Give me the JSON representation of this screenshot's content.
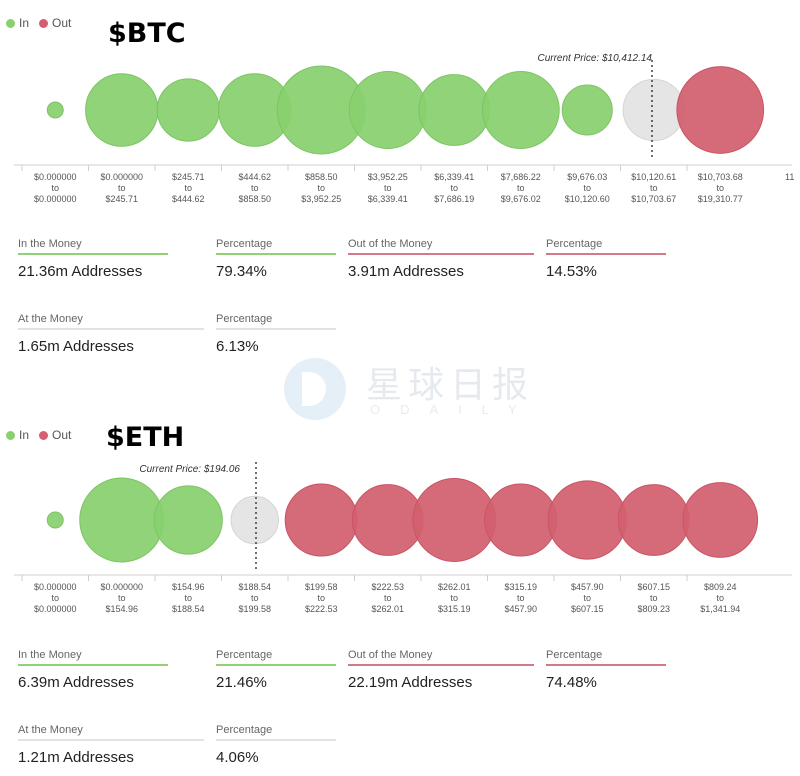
{
  "legend": {
    "in": "In",
    "out": "Out"
  },
  "colors": {
    "in": "#89d06e",
    "out": "#d2606f",
    "at": "#e3e3e3"
  },
  "watermark": {
    "cn": "星球日报",
    "en": "ODAILY"
  },
  "chart_data": [
    {
      "type": "bubble",
      "title": "$BTC",
      "current_price_label": "Current Price: $10,412.14",
      "bins": [
        {
          "from": "$0.000000",
          "to": "$0.000000",
          "status": "in",
          "addresses_m": 0.05
        },
        {
          "from": "$0.000000",
          "to": "$245.71",
          "status": "in",
          "addresses_m": 2.3
        },
        {
          "from": "$245.71",
          "to": "$444.62",
          "status": "in",
          "addresses_m": 1.7
        },
        {
          "from": "$444.62",
          "to": "$858.50",
          "status": "in",
          "addresses_m": 2.3
        },
        {
          "from": "$858.50",
          "to": "$3,952.25",
          "status": "in",
          "addresses_m": 3.4
        },
        {
          "from": "$3,952.25",
          "to": "$6,339.41",
          "status": "in",
          "addresses_m": 2.6
        },
        {
          "from": "$6,339.41",
          "to": "$7,686.19",
          "status": "in",
          "addresses_m": 2.2
        },
        {
          "from": "$7,686.22",
          "to": "$9,676.02",
          "status": "in",
          "addresses_m": 2.6
        },
        {
          "from": "$9,676.03",
          "to": "$10,120.60",
          "status": "in",
          "addresses_m": 1.1
        },
        {
          "from": "$10,120.61",
          "to": "$10,703.67",
          "status": "at",
          "addresses_m": 1.65
        },
        {
          "from": "$10,703.68",
          "to": "$19,310.77",
          "status": "out",
          "addresses_m": 3.3
        }
      ],
      "truncated_label": "11",
      "stats": {
        "in": {
          "label": "In the Money",
          "value": "21.36m Addresses",
          "pct_label": "Percentage",
          "pct": "79.34%"
        },
        "out": {
          "label": "Out of the Money",
          "value": "3.91m Addresses",
          "pct_label": "Percentage",
          "pct": "14.53%"
        },
        "at": {
          "label": "At the Money",
          "value": "1.65m Addresses",
          "pct_label": "Percentage",
          "pct": "6.13%"
        }
      }
    },
    {
      "type": "bubble",
      "title": "$ETH",
      "current_price_label": "Current Price: $194.06",
      "bins": [
        {
          "from": "$0.000000",
          "to": "$0.000000",
          "status": "in",
          "addresses_m": 0.05
        },
        {
          "from": "$0.000000",
          "to": "$154.96",
          "status": "in",
          "addresses_m": 3.8
        },
        {
          "from": "$154.96",
          "to": "$188.54",
          "status": "in",
          "addresses_m": 2.5
        },
        {
          "from": "$188.54",
          "to": "$199.58",
          "status": "at",
          "addresses_m": 1.21
        },
        {
          "from": "$199.58",
          "to": "$222.53",
          "status": "out",
          "addresses_m": 2.8
        },
        {
          "from": "$222.53",
          "to": "$262.01",
          "status": "out",
          "addresses_m": 2.7
        },
        {
          "from": "$262.01",
          "to": "$315.19",
          "status": "out",
          "addresses_m": 3.7
        },
        {
          "from": "$315.19",
          "to": "$457.90",
          "status": "out",
          "addresses_m": 2.8
        },
        {
          "from": "$457.90",
          "to": "$607.15",
          "status": "out",
          "addresses_m": 3.3
        },
        {
          "from": "$607.15",
          "to": "$809.23",
          "status": "out",
          "addresses_m": 2.7
        },
        {
          "from": "$809.24",
          "to": "$1,341.94",
          "status": "out",
          "addresses_m": 3.0
        }
      ],
      "stats": {
        "in": {
          "label": "In the Money",
          "value": "6.39m Addresses",
          "pct_label": "Percentage",
          "pct": "21.46%"
        },
        "out": {
          "label": "Out of the Money",
          "value": "22.19m Addresses",
          "pct_label": "Percentage",
          "pct": "74.48%"
        },
        "at": {
          "label": "At the Money",
          "value": "1.21m Addresses",
          "pct_label": "Percentage",
          "pct": "4.06%"
        }
      }
    }
  ]
}
